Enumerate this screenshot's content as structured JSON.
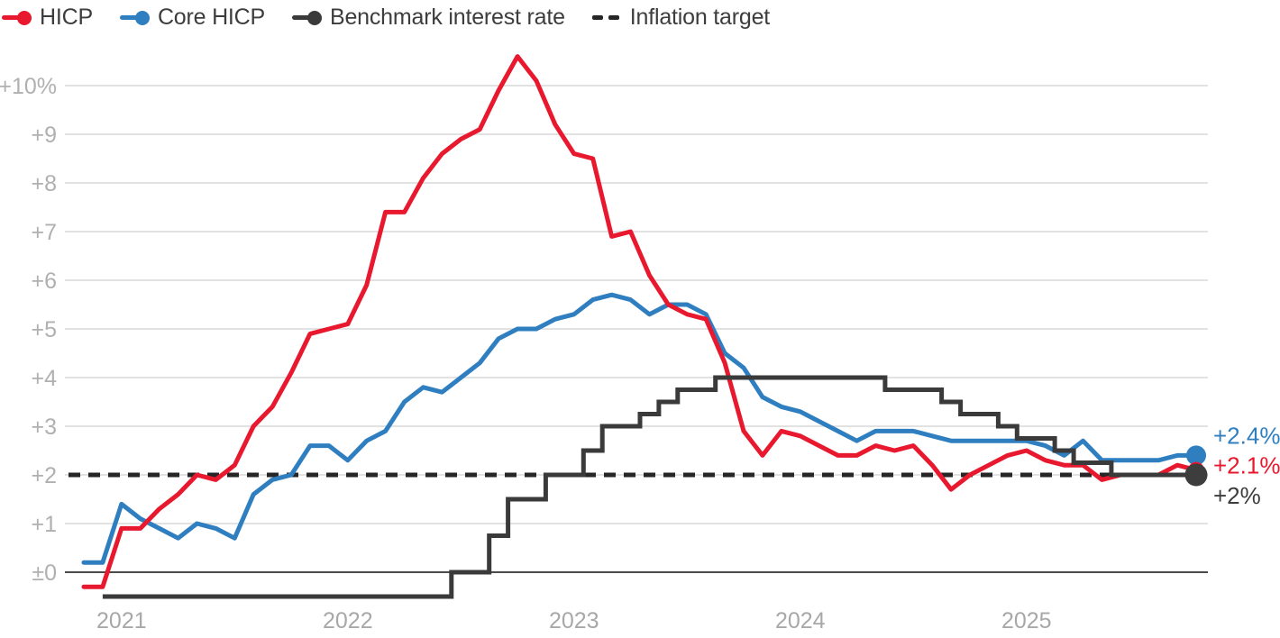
{
  "legend": [
    {
      "label": "HICP",
      "color": "#e8192e",
      "marker": "line-dot"
    },
    {
      "label": "Core HICP",
      "color": "#2f7fc0",
      "marker": "line-dot"
    },
    {
      "label": "Benchmark interest rate",
      "color": "#3a3a3a",
      "marker": "line-dot"
    },
    {
      "label": "Inflation target",
      "color": "#262626",
      "marker": "dashes"
    }
  ],
  "chart_data": {
    "type": "line",
    "frequency": "monthly",
    "title": "",
    "xlabel": "",
    "ylabel": "",
    "grid": "horizontal",
    "legend_position": "top-left",
    "ylim": [
      -0.8,
      10.8
    ],
    "x": [
      "2020-11",
      "2020-12",
      "2021-01",
      "2021-02",
      "2021-03",
      "2021-04",
      "2021-05",
      "2021-06",
      "2021-07",
      "2021-08",
      "2021-09",
      "2021-10",
      "2021-11",
      "2021-12",
      "2022-01",
      "2022-02",
      "2022-03",
      "2022-04",
      "2022-05",
      "2022-06",
      "2022-07",
      "2022-08",
      "2022-09",
      "2022-10",
      "2022-11",
      "2022-12",
      "2023-01",
      "2023-02",
      "2023-03",
      "2023-04",
      "2023-05",
      "2023-06",
      "2023-07",
      "2023-08",
      "2023-09",
      "2023-10",
      "2023-11",
      "2023-12",
      "2024-01",
      "2024-02",
      "2024-03",
      "2024-04",
      "2024-05",
      "2024-06",
      "2024-07",
      "2024-08",
      "2024-09",
      "2024-10",
      "2024-11",
      "2024-12",
      "2025-01",
      "2025-02",
      "2025-03",
      "2025-04",
      "2025-05",
      "2025-06",
      "2025-07",
      "2025-08",
      "2025-09",
      "2025-10"
    ],
    "series": [
      {
        "name": "Core HICP",
        "color": "#2f7fc0",
        "style": "solid",
        "values": [
          0.2,
          0.2,
          1.4,
          1.1,
          0.9,
          0.7,
          1.0,
          0.9,
          0.7,
          1.6,
          1.9,
          2.0,
          2.6,
          2.6,
          2.3,
          2.7,
          2.9,
          3.5,
          3.8,
          3.7,
          4.0,
          4.3,
          4.8,
          5.0,
          5.0,
          5.2,
          5.3,
          5.6,
          5.7,
          5.6,
          5.3,
          5.5,
          5.5,
          5.3,
          4.5,
          4.2,
          3.6,
          3.4,
          3.3,
          3.1,
          2.9,
          2.7,
          2.9,
          2.9,
          2.9,
          2.8,
          2.7,
          2.7,
          2.7,
          2.7,
          2.7,
          2.6,
          2.4,
          2.7,
          2.3,
          2.3,
          2.3,
          2.3,
          2.4,
          2.4
        ]
      },
      {
        "name": "HICP",
        "color": "#e8192e",
        "style": "solid",
        "values": [
          -0.3,
          -0.3,
          0.9,
          0.9,
          1.3,
          1.6,
          2.0,
          1.9,
          2.2,
          3.0,
          3.4,
          4.1,
          4.9,
          5.0,
          5.1,
          5.9,
          7.4,
          7.4,
          8.1,
          8.6,
          8.9,
          9.1,
          9.9,
          10.6,
          10.1,
          9.2,
          8.6,
          8.5,
          6.9,
          7.0,
          6.1,
          5.5,
          5.3,
          5.2,
          4.3,
          2.9,
          2.4,
          2.9,
          2.8,
          2.6,
          2.4,
          2.4,
          2.6,
          2.5,
          2.6,
          2.2,
          1.7,
          2.0,
          2.2,
          2.4,
          2.5,
          2.3,
          2.2,
          2.2,
          1.9,
          2.0,
          2.0,
          2.0,
          2.2,
          2.1
        ]
      },
      {
        "name": "Benchmark interest rate",
        "color": "#3a3a3a",
        "style": "step",
        "values": [
          null,
          -0.5,
          -0.5,
          -0.5,
          -0.5,
          -0.5,
          -0.5,
          -0.5,
          -0.5,
          -0.5,
          -0.5,
          -0.5,
          -0.5,
          -0.5,
          -0.5,
          -0.5,
          -0.5,
          -0.5,
          -0.5,
          -0.5,
          0,
          0,
          0.75,
          1.5,
          1.5,
          2,
          2,
          2.5,
          3,
          3,
          3.25,
          3.5,
          3.75,
          3.75,
          4,
          4,
          4,
          4,
          4,
          4,
          4,
          4,
          4,
          3.75,
          3.75,
          3.75,
          3.5,
          3.25,
          3.25,
          3,
          2.75,
          2.75,
          2.5,
          2.25,
          2.25,
          2,
          2,
          2,
          2,
          2
        ]
      }
    ],
    "target_line": {
      "name": "Inflation target",
      "value": 2,
      "color": "#262626",
      "style": "dashed"
    },
    "yticks": [
      {
        "value": 10,
        "label": "+10%"
      },
      {
        "value": 9,
        "label": "+9"
      },
      {
        "value": 8,
        "label": "+8"
      },
      {
        "value": 7,
        "label": "+7"
      },
      {
        "value": 6,
        "label": "+6"
      },
      {
        "value": 5,
        "label": "+5"
      },
      {
        "value": 4,
        "label": "+4"
      },
      {
        "value": 3,
        "label": "+3"
      },
      {
        "value": 2,
        "label": "+2"
      },
      {
        "value": 1,
        "label": "+1"
      },
      {
        "value": 0,
        "label": "±0"
      }
    ],
    "xticks": [
      {
        "label": "2021",
        "month": "2021-01"
      },
      {
        "label": "2022",
        "month": "2022-01"
      },
      {
        "label": "2023",
        "month": "2023-01"
      },
      {
        "label": "2024",
        "month": "2024-01"
      },
      {
        "label": "2025",
        "month": "2025-01"
      }
    ],
    "end_labels": [
      {
        "series": "Core HICP",
        "text": "+2.4%",
        "value": 2.4,
        "color": "#2f7fc0"
      },
      {
        "series": "HICP",
        "text": "+2.1%",
        "value": 2.1,
        "color": "#e8192e"
      },
      {
        "series": "Benchmark interest rate",
        "text": "+2%",
        "value": 2.0,
        "color": "#3d3d3d"
      }
    ],
    "style_colors": {
      "gridline": "#d9d9d9",
      "zero_line": "#4a4a4a",
      "axis_text": "#b0b0b0",
      "x_axis_text": "#a8a8a8"
    }
  }
}
